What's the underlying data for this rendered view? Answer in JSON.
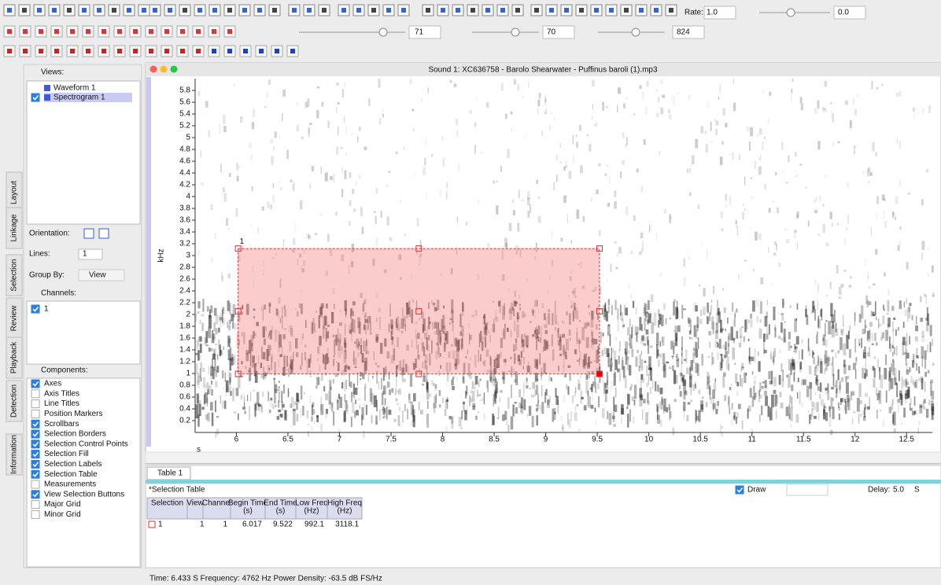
{
  "toolbar": {
    "rate_label": "Rate:",
    "rate": "1.0",
    "volume": "0.0",
    "brightness": "71",
    "contrast": "70",
    "resolution": "824"
  },
  "side_tabs": [
    "Layout",
    "Linkage",
    "Selection",
    "Review",
    "Playback",
    "Detection",
    "Information"
  ],
  "views": {
    "title": "Views:",
    "items": [
      {
        "label": "Waveform 1",
        "checked": false
      },
      {
        "label": "Spectrogram 1",
        "checked": true
      }
    ]
  },
  "layout": {
    "orientation_label": "Orientation:",
    "lines_label": "Lines:",
    "lines": "1",
    "group_by_label": "Group By:",
    "group_by": "View"
  },
  "channels": {
    "title": "Channels:",
    "items": [
      {
        "label": "1",
        "checked": true
      }
    ]
  },
  "components": {
    "title": "Components:",
    "items": [
      {
        "label": "Axes",
        "checked": true
      },
      {
        "label": "Axis Titles",
        "checked": false
      },
      {
        "label": "Line Titles",
        "checked": false
      },
      {
        "label": "Position Markers",
        "checked": false
      },
      {
        "label": "Scrollbars",
        "checked": true
      },
      {
        "label": "Selection Borders",
        "checked": true
      },
      {
        "label": "Selection Control Points",
        "checked": true
      },
      {
        "label": "Selection Fill",
        "checked": true
      },
      {
        "label": "Selection Labels",
        "checked": true
      },
      {
        "label": "Selection Table",
        "checked": true
      },
      {
        "label": "Measurements",
        "checked": false
      },
      {
        "label": "View Selection Buttons",
        "checked": true
      },
      {
        "label": "Major Grid",
        "checked": false
      },
      {
        "label": "Minor Grid",
        "checked": false
      }
    ]
  },
  "spectrogram": {
    "window_title": "Sound 1: XC636758 - Barolo Shearwater - Puffinus baroli (1).mp3",
    "y_label": "kHz",
    "x_label": "s",
    "xlim": [
      5.6,
      12.75
    ],
    "ylim": [
      0,
      6.0
    ],
    "xticks": [
      6,
      6.5,
      7,
      7.5,
      8,
      8.5,
      9,
      9.5,
      10,
      10.5,
      11,
      11.5,
      12,
      12.5
    ],
    "yticks": [
      0.2,
      0.4,
      0.6,
      0.8,
      1,
      1.2,
      1.4,
      1.6,
      1.8,
      2,
      2.2,
      2.4,
      2.6,
      2.8,
      3,
      3.2,
      3.4,
      3.6,
      3.8,
      4,
      4.2,
      4.4,
      4.6,
      4.8,
      5,
      5.2,
      5.4,
      5.6,
      5.8
    ],
    "selection_label": "1"
  },
  "table": {
    "tab": "Table 1",
    "title": "*Selection Table",
    "draw_label": "Draw",
    "delay_label": "Delay:",
    "delay": "5.0",
    "delay_unit": "S",
    "columns": [
      [
        "Selection"
      ],
      [
        "View"
      ],
      [
        "Channel"
      ],
      [
        "Begin Time",
        "(s)"
      ],
      [
        "End Time",
        "(s)"
      ],
      [
        "Low Freq",
        "(Hz)"
      ],
      [
        "High Freq",
        "(Hz)"
      ]
    ],
    "rows": [
      [
        "1",
        "1",
        1,
        6.017,
        9.522,
        992.1,
        3118.1
      ]
    ]
  },
  "status": "Time: 6.433 S   Frequency: 4762 Hz   Power Density: -63.5 dB FS/Hz"
}
